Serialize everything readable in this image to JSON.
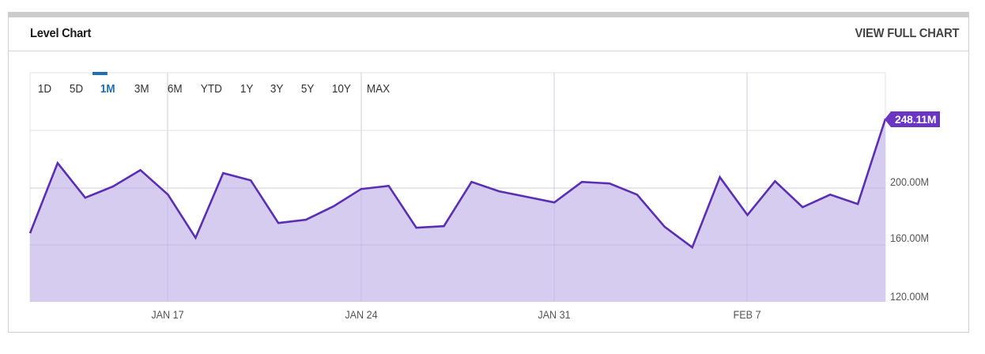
{
  "header": {
    "title": "Level Chart",
    "view_full_chart": "VIEW FULL CHART"
  },
  "range_tabs": [
    {
      "label": "1D",
      "active": false
    },
    {
      "label": "5D",
      "active": false
    },
    {
      "label": "1M",
      "active": true
    },
    {
      "label": "3M",
      "active": false
    },
    {
      "label": "6M",
      "active": false
    },
    {
      "label": "YTD",
      "active": false
    },
    {
      "label": "1Y",
      "active": false
    },
    {
      "label": "3Y",
      "active": false
    },
    {
      "label": "5Y",
      "active": false
    },
    {
      "label": "10Y",
      "active": false
    },
    {
      "label": "MAX",
      "active": false
    }
  ],
  "colors": {
    "line": "#5b2fb3",
    "fill": "#d6ccf0",
    "badge": "#6b35c4",
    "active_tab": "#1c6fb8",
    "grid": "#e3e3e3"
  },
  "last_value_label": "248.11M",
  "chart_data": {
    "type": "area",
    "title": "Level Chart",
    "xlabel": "",
    "ylabel": "",
    "x_tick_labels": [
      "JAN 17",
      "JAN 24",
      "JAN 31",
      "FEB 7"
    ],
    "y_tick_labels": [
      "120.00M",
      "160.00M",
      "200.00M"
    ],
    "ylim": [
      120,
      256
    ],
    "grid": true,
    "legend": "none",
    "units": "M",
    "x": [
      "Jan 11",
      "Jan 12",
      "Jan 13",
      "Jan 14",
      "Jan 15",
      "Jan 17",
      "Jan 18",
      "Jan 19",
      "Jan 20",
      "Jan 21",
      "Jan 22",
      "Jan 23",
      "Jan 24",
      "Jan 25",
      "Jan 26",
      "Jan 27",
      "Jan 28",
      "Jan 29",
      "Jan 30",
      "Jan 31",
      "Feb 1",
      "Feb 2",
      "Feb 3",
      "Feb 4",
      "Feb 5",
      "Feb 6",
      "Feb 7",
      "Feb 8",
      "Feb 9",
      "Feb 10",
      "Feb 11",
      "Feb 12"
    ],
    "series": [
      {
        "name": "Level",
        "values": [
          168.1,
          217.2,
          192.9,
          200.7,
          212.3,
          195.1,
          164.8,
          210.1,
          205.1,
          175.2,
          177.5,
          186.9,
          199.0,
          201.2,
          171.9,
          173.0,
          204.0,
          197.4,
          193.5,
          189.6,
          204.0,
          202.9,
          195.1,
          172.5,
          158.1,
          207.3,
          180.8,
          204.5,
          186.3,
          195.1,
          188.5,
          248.11
        ]
      }
    ],
    "last_value": 248.11
  }
}
